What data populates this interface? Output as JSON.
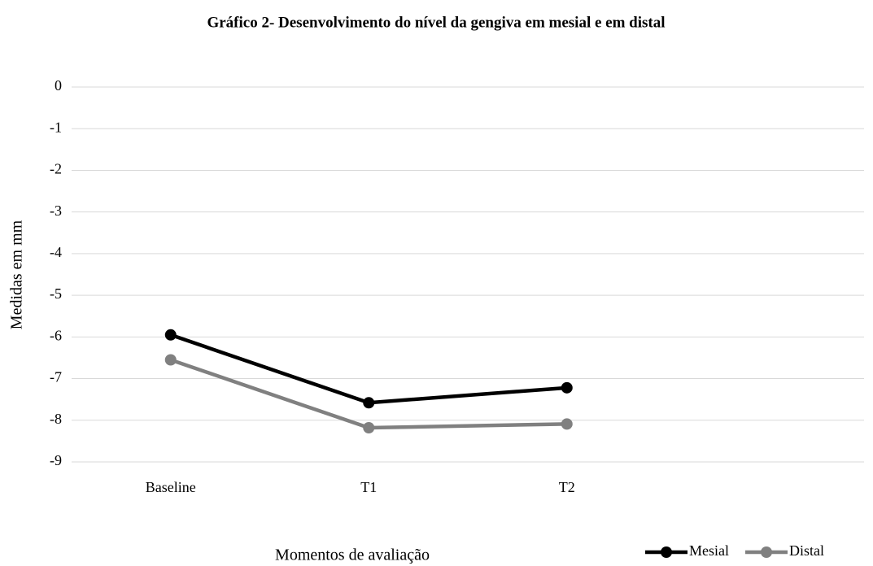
{
  "chart_data": {
    "type": "line",
    "title": "Gráfico 2- Desenvolvimento do nível da gengiva em mesial e em distal",
    "x_label": "Momentos de avaliação",
    "y_label": "Medidas em mm",
    "categories": [
      "Baseline",
      "T1",
      "T2",
      null
    ],
    "series": [
      {
        "name": "Mesial",
        "color": "#000000",
        "values": [
          -5.95,
          -7.58,
          -7.22,
          null
        ]
      },
      {
        "name": "Distal",
        "color": "#808080",
        "values": [
          -6.55,
          -8.18,
          -8.09,
          null
        ]
      }
    ],
    "ylim": [
      -9,
      0
    ],
    "yticks": [
      0,
      -1,
      -2,
      -3,
      -4,
      -5,
      -6,
      -7,
      -8,
      -9
    ],
    "grid": true,
    "legend": "bottom-right"
  }
}
